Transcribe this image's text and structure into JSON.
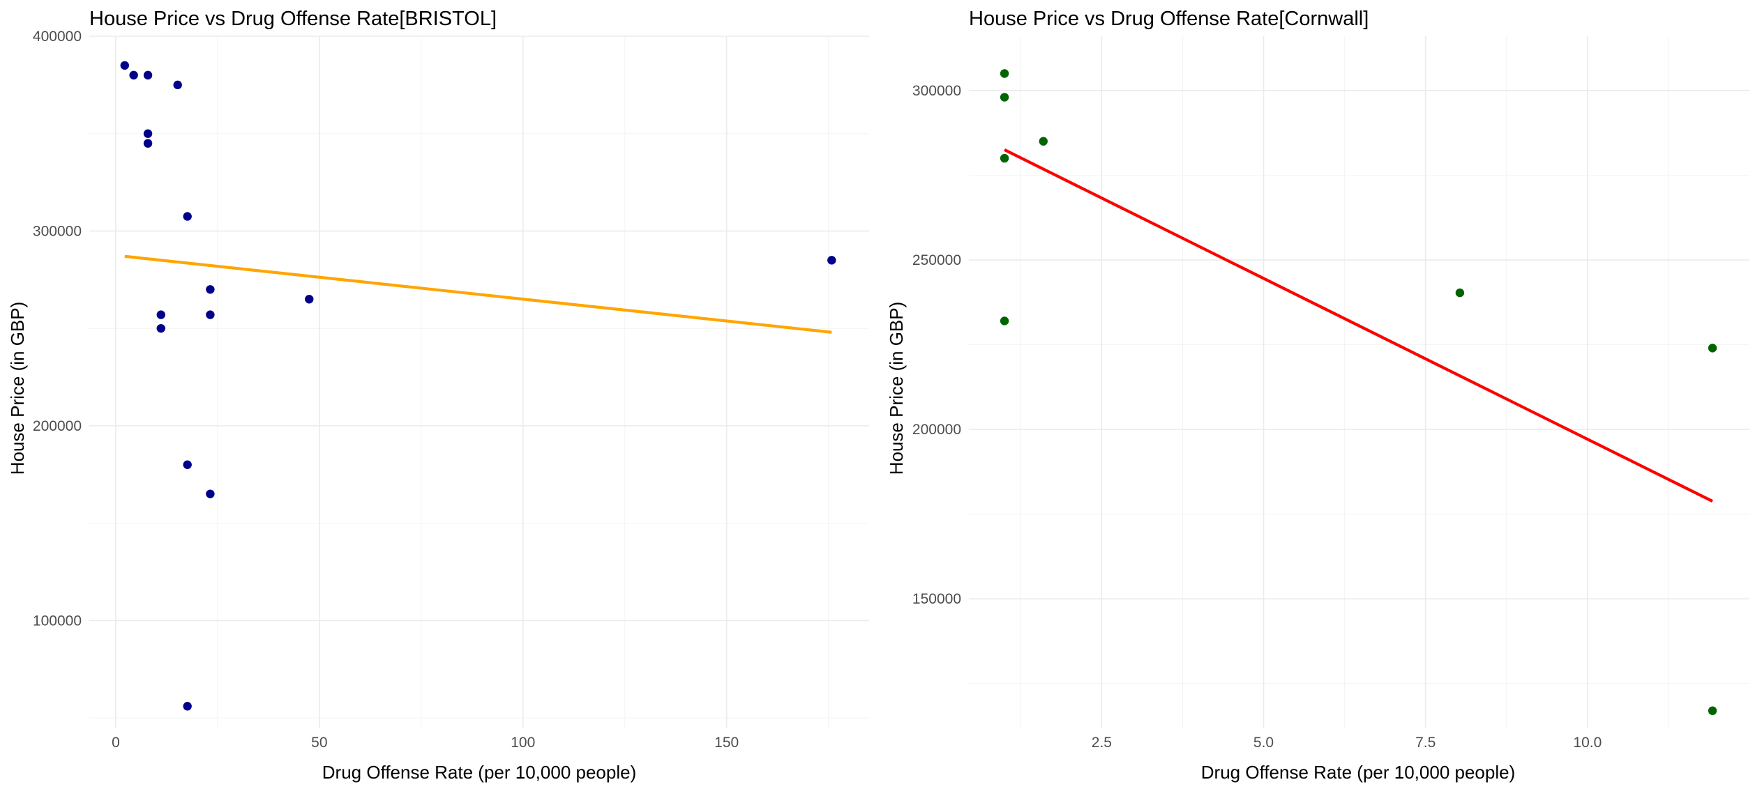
{
  "chart_data": [
    {
      "type": "scatter",
      "title": "House Price vs Drug Offense Rate[BRISTOL]",
      "xlabel": "Drug Offense Rate (per 10,000 people)",
      "ylabel": "House Price (in GBP)",
      "xlim": [
        -6.5,
        185
      ],
      "ylim": [
        45000,
        400000
      ],
      "x_ticks": [
        0,
        50,
        100,
        150
      ],
      "x_tick_labels": [
        "0",
        "50",
        "100",
        "150"
      ],
      "y_ticks": [
        100000,
        200000,
        300000,
        400000
      ],
      "y_tick_labels": [
        "100000",
        "200000",
        "300000",
        "400000"
      ],
      "grid": true,
      "point_color": "#00008b",
      "line_color": "#ffa500",
      "x": [
        2.2,
        4.4,
        7.9,
        15.2,
        7.9,
        7.9,
        17.6,
        23.2,
        11.1,
        23.2,
        11.1,
        47.5,
        175.8,
        17.6,
        23.2,
        17.6
      ],
      "y": [
        385000,
        380000,
        380000,
        375000,
        350000,
        345000,
        307500,
        270000,
        257000,
        257000,
        250000,
        265000,
        285000,
        180000,
        165000,
        56000
      ],
      "trend_line": {
        "x": [
          2.2,
          175.8
        ],
        "y": [
          287000,
          248000
        ]
      }
    },
    {
      "type": "scatter",
      "title": "House Price vs Drug Offense Rate[Cornwall]",
      "xlabel": "Drug Offense Rate (per 10,000 people)",
      "ylabel": "House Price (in GBP)",
      "xlim": [
        0.45,
        12.5
      ],
      "ylim": [
        112000,
        316000
      ],
      "x_ticks": [
        2.5,
        5.0,
        7.5,
        10.0
      ],
      "x_tick_labels": [
        "2.5",
        "5.0",
        "7.5",
        "10.0"
      ],
      "y_ticks": [
        150000,
        200000,
        250000,
        300000
      ],
      "y_tick_labels": [
        "150000",
        "200000",
        "250000",
        "300000"
      ],
      "grid": true,
      "point_color": "#006400",
      "line_color": "#ff0000",
      "x": [
        1.0,
        1.0,
        1.0,
        1.0,
        1.6,
        8.03,
        11.93,
        11.93
      ],
      "y": [
        305000,
        298000,
        280000,
        232000,
        285000,
        240300,
        224000,
        117000
      ],
      "trend_line": {
        "x": [
          1.0,
          11.93
        ],
        "y": [
          282500,
          178800
        ]
      }
    }
  ]
}
